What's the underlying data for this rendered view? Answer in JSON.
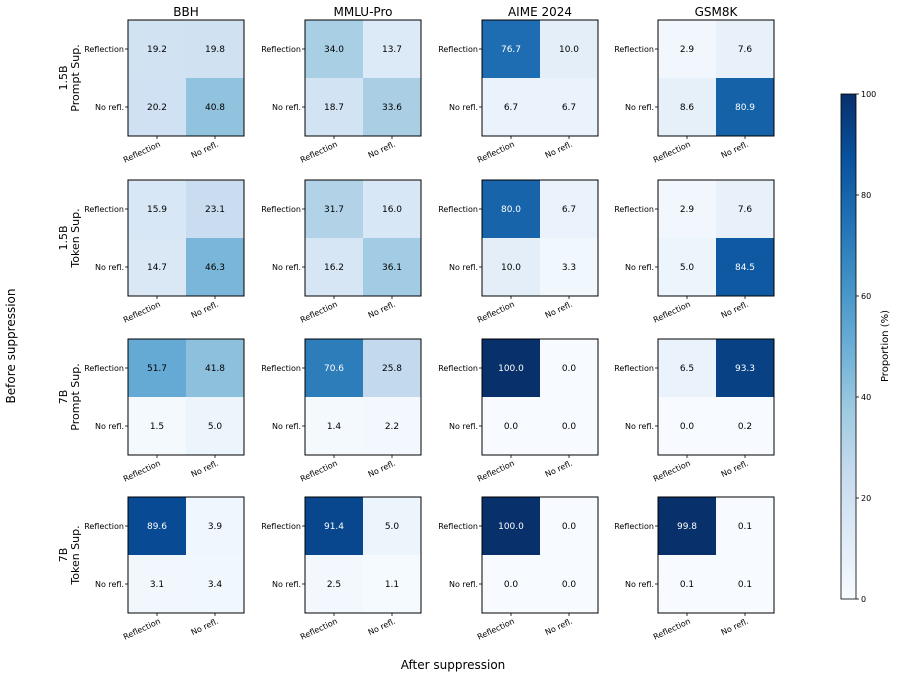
{
  "chart_data": {
    "type": "heatmap",
    "columns": [
      "BBH",
      "MMLU-Pro",
      "AIME 2024",
      "GSM8K"
    ],
    "rows": [
      {
        "label_line1": "1.5B",
        "label_line2": "Prompt Sup."
      },
      {
        "label_line1": "1.5B",
        "label_line2": "Token Sup."
      },
      {
        "label_line1": "7B",
        "label_line2": "Prompt Sup."
      },
      {
        "label_line1": "7B",
        "label_line2": "Token Sup."
      }
    ],
    "x_tick_labels": [
      "Reflection",
      "No refl."
    ],
    "y_tick_labels": [
      "Reflection",
      "No refl."
    ],
    "xlabel": "After suppression",
    "ylabel": "Before suppression",
    "matrices": [
      [
        [
          [
            19.2,
            19.8
          ],
          [
            20.2,
            40.8
          ]
        ],
        [
          [
            34.0,
            13.7
          ],
          [
            18.7,
            33.6
          ]
        ],
        [
          [
            76.7,
            10.0
          ],
          [
            6.7,
            6.7
          ]
        ],
        [
          [
            2.9,
            7.6
          ],
          [
            8.6,
            80.9
          ]
        ]
      ],
      [
        [
          [
            15.9,
            23.1
          ],
          [
            14.7,
            46.3
          ]
        ],
        [
          [
            31.7,
            16.0
          ],
          [
            16.2,
            36.1
          ]
        ],
        [
          [
            80.0,
            6.7
          ],
          [
            10.0,
            3.3
          ]
        ],
        [
          [
            2.9,
            7.6
          ],
          [
            5.0,
            84.5
          ]
        ]
      ],
      [
        [
          [
            51.7,
            41.8
          ],
          [
            1.5,
            5.0
          ]
        ],
        [
          [
            70.6,
            25.8
          ],
          [
            1.4,
            2.2
          ]
        ],
        [
          [
            100.0,
            0.0
          ],
          [
            0.0,
            0.0
          ]
        ],
        [
          [
            6.5,
            93.3
          ],
          [
            0.0,
            0.2
          ]
        ]
      ],
      [
        [
          [
            89.6,
            3.9
          ],
          [
            3.1,
            3.4
          ]
        ],
        [
          [
            91.4,
            5.0
          ],
          [
            2.5,
            1.1
          ]
        ],
        [
          [
            100.0,
            0.0
          ],
          [
            0.0,
            0.0
          ]
        ],
        [
          [
            99.8,
            0.1
          ],
          [
            0.1,
            0.1
          ]
        ]
      ]
    ],
    "colorbar": {
      "label": "Proportion (%)",
      "ticks": [
        0,
        20,
        40,
        60,
        80,
        100
      ],
      "range": [
        0,
        100
      ]
    },
    "colormap": "Blues",
    "colors": {
      "low": "#f7fbff",
      "high": "#08306b",
      "text_dark": "#000000",
      "text_light": "#ffffff"
    }
  }
}
